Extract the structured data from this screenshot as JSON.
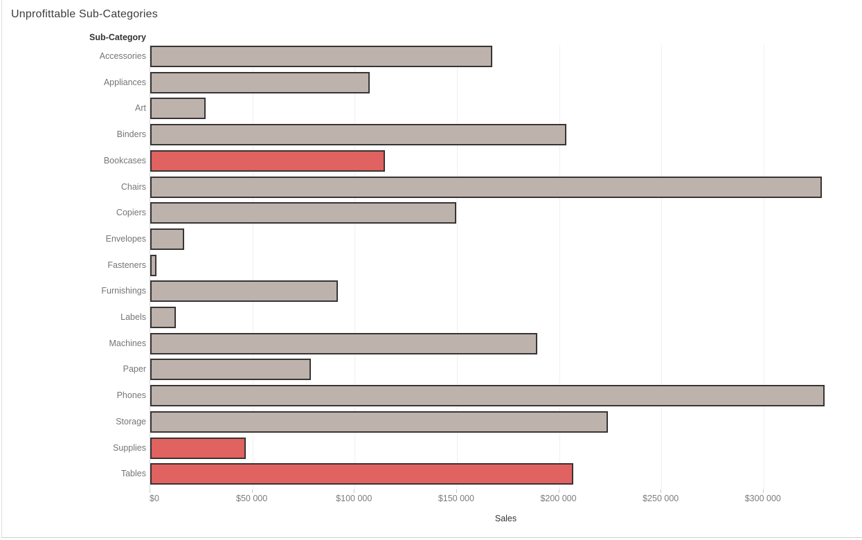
{
  "chart": {
    "row_header_label": "Sub-Category",
    "colors": {
      "bar_fill": "#bdb3ac",
      "bar_fill_unprofitable": "#e06261",
      "bar_border": "#383434",
      "gridline": "#f0f0f0",
      "axis_line": "#d8d8d8",
      "tick_mark": "#c9c9c9",
      "tick_label_text": "#7b7b7b",
      "category_label_text": "#757575",
      "header_text": "#333333",
      "title_text": "#3c3c3c"
    }
  },
  "chart_data": {
    "type": "bar",
    "orientation": "horizontal",
    "title": "Unprofittable Sub-Categories",
    "xlabel": "Sales",
    "ylabel": "Sub-Category",
    "xlim": [
      0,
      348500
    ],
    "grid": "vertical",
    "legend": "none",
    "x_ticks": [
      {
        "value": 0,
        "label": "$0"
      },
      {
        "value": 50000,
        "label": "$50 000"
      },
      {
        "value": 100000,
        "label": "$100 000"
      },
      {
        "value": 150000,
        "label": "$150 000"
      },
      {
        "value": 200000,
        "label": "$200 000"
      },
      {
        "value": 250000,
        "label": "$250 000"
      },
      {
        "value": 300000,
        "label": "$300 000"
      }
    ],
    "highlighted_categories": [
      "Bookcases",
      "Supplies",
      "Tables"
    ],
    "series": [
      {
        "name": "Sales",
        "points": [
          {
            "category": "Accessories",
            "value": 167380,
            "unprofitable": false
          },
          {
            "category": "Appliances",
            "value": 107530,
            "unprofitable": false
          },
          {
            "category": "Art",
            "value": 27120,
            "unprofitable": false
          },
          {
            "category": "Binders",
            "value": 203410,
            "unprofitable": false
          },
          {
            "category": "Bookcases",
            "value": 114880,
            "unprofitable": true
          },
          {
            "category": "Chairs",
            "value": 328450,
            "unprofitable": false
          },
          {
            "category": "Copiers",
            "value": 149530,
            "unprofitable": false
          },
          {
            "category": "Envelopes",
            "value": 16480,
            "unprofitable": false
          },
          {
            "category": "Fasteners",
            "value": 3020,
            "unprofitable": false
          },
          {
            "category": "Furnishings",
            "value": 91710,
            "unprofitable": false
          },
          {
            "category": "Labels",
            "value": 12490,
            "unprofitable": false
          },
          {
            "category": "Machines",
            "value": 189240,
            "unprofitable": false
          },
          {
            "category": "Paper",
            "value": 78480,
            "unprofitable": false
          },
          {
            "category": "Phones",
            "value": 330010,
            "unprofitable": false
          },
          {
            "category": "Storage",
            "value": 223840,
            "unprofitable": false
          },
          {
            "category": "Supplies",
            "value": 46670,
            "unprofitable": true
          },
          {
            "category": "Tables",
            "value": 206970,
            "unprofitable": true
          }
        ]
      }
    ]
  }
}
